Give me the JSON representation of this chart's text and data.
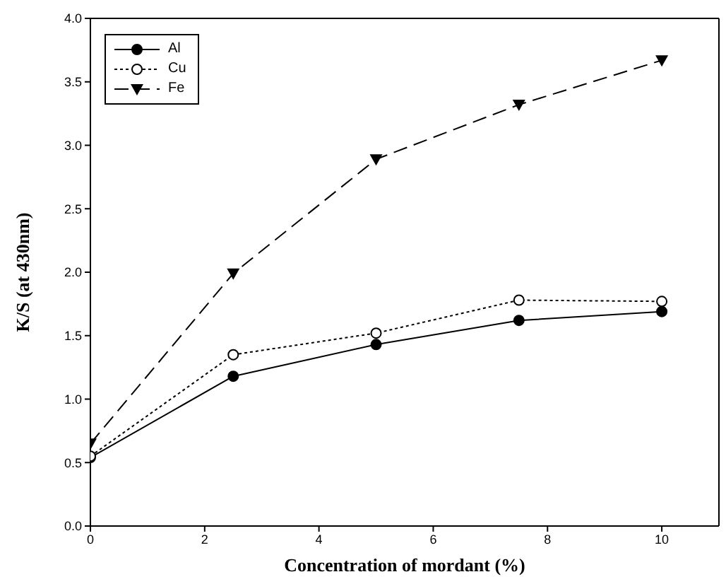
{
  "chart_data": {
    "type": "line",
    "xlabel": "Concentration of mordant (%)",
    "ylabel": "K/S (at 430nm)",
    "x": [
      0,
      2.5,
      5,
      7.5,
      10
    ],
    "series": [
      {
        "name": "Al",
        "color": "#000000",
        "marker": "circle",
        "line_style": "solid",
        "values": [
          0.54,
          1.18,
          1.43,
          1.62,
          1.69
        ]
      },
      {
        "name": "Cu",
        "color": "#000000",
        "marker": "circle",
        "line_style": "dotted",
        "values": [
          0.55,
          1.35,
          1.52,
          1.78,
          1.77
        ]
      },
      {
        "name": "Fe",
        "color": "#000000",
        "marker": "triangle",
        "line_style": "dashed",
        "values": [
          0.65,
          1.99,
          2.89,
          3.32,
          3.67
        ]
      }
    ],
    "xlim": [
      0,
      11
    ],
    "xticks": [
      0,
      2,
      4,
      6,
      8,
      10
    ],
    "ylim": [
      0,
      4
    ],
    "yticks": [
      {
        "value": 0,
        "label": "0.0"
      },
      {
        "value": 0.5,
        "label": "0.5"
      },
      {
        "value": 1,
        "label": "1.0"
      },
      {
        "value": 1.5,
        "label": "1.5"
      },
      {
        "value": 2,
        "label": "2.0"
      },
      {
        "value": 2.5,
        "label": "2.5"
      },
      {
        "value": 3,
        "label": "3.0"
      },
      {
        "value": 3.5,
        "label": "3.5"
      },
      {
        "value": 4,
        "label": "4.0"
      }
    ],
    "legend": "top left",
    "grid": false
  }
}
